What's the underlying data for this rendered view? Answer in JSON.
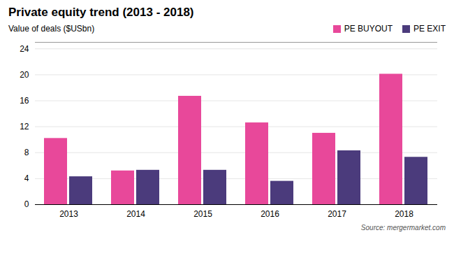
{
  "chart_data": {
    "type": "bar",
    "title": "Private equity trend (2013 - 2018)",
    "subtitle": "Value of deals ($USbn)",
    "source": "Source: mergermarket.com",
    "categories": [
      "2013",
      "2014",
      "2015",
      "2016",
      "2017",
      "2018"
    ],
    "series": [
      {
        "name": "PE BUYOUT",
        "color": "#E8489A",
        "values": [
          10.2,
          5.2,
          16.7,
          12.6,
          11.0,
          20.1
        ]
      },
      {
        "name": "PE EXIT",
        "color": "#4B3B7C",
        "values": [
          4.3,
          5.3,
          5.3,
          3.6,
          8.3,
          7.3
        ]
      }
    ],
    "ylim": [
      0,
      25
    ],
    "yticks": [
      0,
      4,
      8,
      12,
      16,
      20,
      24
    ],
    "grid": true,
    "legend": "top-right"
  }
}
